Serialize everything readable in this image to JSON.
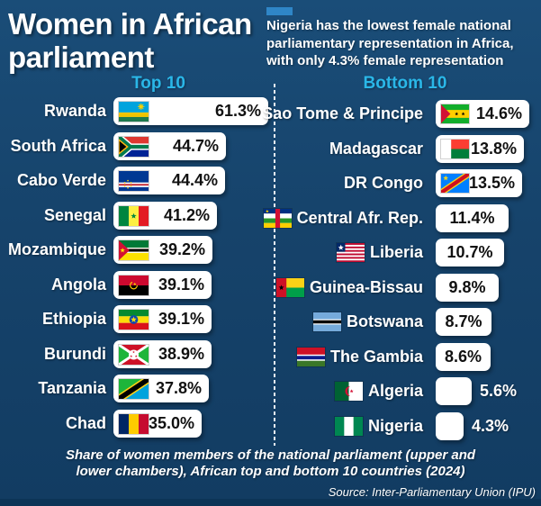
{
  "title": {
    "line1": "Women in African",
    "line2": "parliament"
  },
  "annotation": {
    "lines": [
      "Nigeria has the lowest female national",
      "parliamentary representation in Africa,",
      "with only 4.3% female representation"
    ]
  },
  "headers": {
    "top": "Top 10",
    "bottom": "Bottom 10"
  },
  "chart_data": {
    "type": "bar",
    "title": "Women in African parliament",
    "unit": "% women members of national parliament",
    "xlim": [
      0,
      65
    ],
    "series": [
      {
        "name": "Top 10",
        "rows": [
          {
            "country": "Rwanda",
            "value": 61.3,
            "label": "61.3%",
            "flag": "flag-rwanda-icon"
          },
          {
            "country": "South Africa",
            "value": 44.7,
            "label": "44.7%",
            "flag": "flag-south-africa-icon"
          },
          {
            "country": "Cabo Verde",
            "value": 44.4,
            "label": "44.4%",
            "flag": "flag-cabo-verde-icon"
          },
          {
            "country": "Senegal",
            "value": 41.2,
            "label": "41.2%",
            "flag": "flag-senegal-icon"
          },
          {
            "country": "Mozambique",
            "value": 39.2,
            "label": "39.2%",
            "flag": "flag-mozambique-icon"
          },
          {
            "country": "Angola",
            "value": 39.1,
            "label": "39.1%",
            "flag": "flag-angola-icon"
          },
          {
            "country": "Ethiopia",
            "value": 39.1,
            "label": "39.1%",
            "flag": "flag-ethiopia-icon"
          },
          {
            "country": "Burundi",
            "value": 38.9,
            "label": "38.9%",
            "flag": "flag-burundi-icon"
          },
          {
            "country": "Tanzania",
            "value": 37.8,
            "label": "37.8%",
            "flag": "flag-tanzania-icon"
          },
          {
            "country": "Chad",
            "value": 35.0,
            "label": "35.0%",
            "flag": "flag-chad-icon"
          }
        ]
      },
      {
        "name": "Bottom 10",
        "rows": [
          {
            "country": "Sao Tome & Principe",
            "value": 14.6,
            "label": "14.6%",
            "flag": "flag-sao-tome-icon"
          },
          {
            "country": "Madagascar",
            "value": 13.8,
            "label": "13.8%",
            "flag": "flag-madagascar-icon"
          },
          {
            "country": "DR Congo",
            "value": 13.5,
            "label": "13.5%",
            "flag": "flag-dr-congo-icon"
          },
          {
            "country": "Central Afr. Rep.",
            "value": 11.4,
            "label": "11.4%",
            "flag": "flag-central-african-republic-icon"
          },
          {
            "country": "Liberia",
            "value": 10.7,
            "label": "10.7%",
            "flag": "flag-liberia-icon"
          },
          {
            "country": "Guinea-Bissau",
            "value": 9.8,
            "label": "9.8%",
            "flag": "flag-guinea-bissau-icon"
          },
          {
            "country": "Botswana",
            "value": 8.7,
            "label": "8.7%",
            "flag": "flag-botswana-icon"
          },
          {
            "country": "The Gambia",
            "value": 8.6,
            "label": "8.6%",
            "flag": "flag-gambia-icon"
          },
          {
            "country": "Algeria",
            "value": 5.6,
            "label": "5.6%",
            "flag": "flag-algeria-icon"
          },
          {
            "country": "Nigeria",
            "value": 4.3,
            "label": "4.3%",
            "flag": "flag-nigeria-icon"
          }
        ]
      }
    ]
  },
  "caption": {
    "lines": [
      "Share of women members of the national parliament (upper and",
      "lower chambers), African top and bottom 10 countries (2024)"
    ]
  },
  "source": "Source: Inter-Parliamentary Union (IPU)",
  "colors": {
    "background": "#16436b",
    "header_text": "#2ab7e8",
    "annotation_accent": "#2f86c7",
    "bar_fill": "#ffffff",
    "value_text": "#111111",
    "footer_strip": "#0c3457"
  }
}
